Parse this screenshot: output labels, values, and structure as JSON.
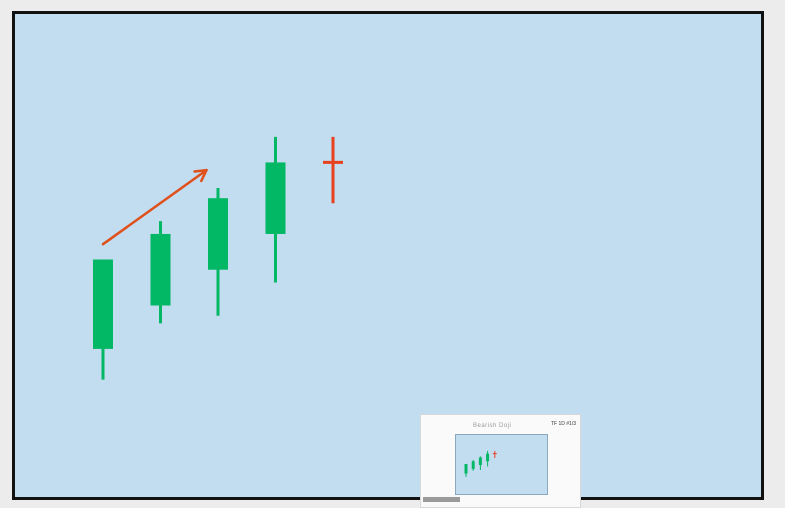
{
  "colors": {
    "bull": "#02b865",
    "bear": "#e8411e",
    "arrow": "#e0501a",
    "background": "#c2dcf0",
    "frame": "#111111"
  },
  "chart_data": {
    "type": "candlestick",
    "title": "",
    "xlabel": "",
    "ylabel": "",
    "grid": false,
    "candles": [
      {
        "open": 100,
        "close": 135,
        "high": 135,
        "low": 88,
        "direction": "up"
      },
      {
        "open": 117,
        "close": 145,
        "high": 150,
        "low": 110,
        "direction": "up"
      },
      {
        "open": 131,
        "close": 159,
        "high": 163,
        "low": 113,
        "direction": "up"
      },
      {
        "open": 145,
        "close": 173,
        "high": 183,
        "low": 126,
        "direction": "up"
      },
      {
        "open": 173,
        "close": 173,
        "high": 183,
        "low": 157,
        "direction": "doji"
      }
    ],
    "ylim": [
      80,
      190
    ],
    "annotations": [
      {
        "type": "arrow",
        "meaning": "uptrend",
        "from": [
          0,
          141
        ],
        "to": [
          1.8,
          170
        ]
      }
    ]
  },
  "thumbnail": {
    "title": "Bearish Doji",
    "corner_text": "TF 1D  #1/3"
  }
}
